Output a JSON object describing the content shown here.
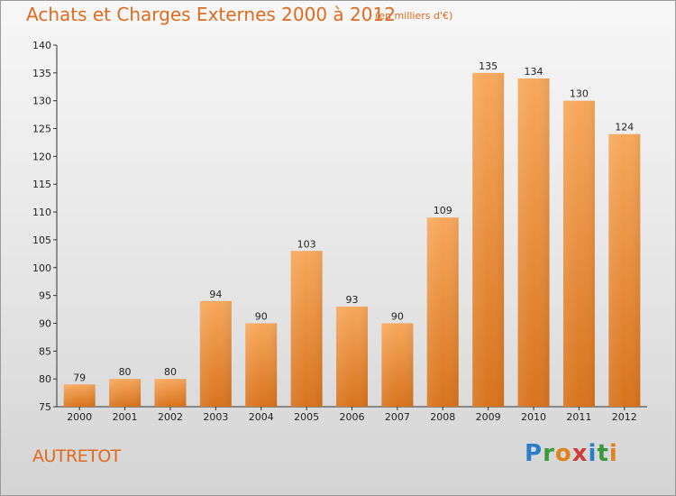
{
  "header": {
    "title": "Achats et Charges Externes 2000 à 2012",
    "subtitle": "(en milliers d'€)"
  },
  "footer": {
    "commune": "AUTRETOT",
    "brand": [
      "P",
      "r",
      "o",
      "x",
      "i",
      "t",
      "i"
    ]
  },
  "colors": {
    "accent": "#e06a1e",
    "bar_light": "#f6a458",
    "bar_dark": "#d9751f"
  },
  "chart_data": {
    "type": "bar",
    "title": "Achats et Charges Externes 2000 à 2012",
    "subtitle": "(en milliers d'€)",
    "categories": [
      "2000",
      "2001",
      "2002",
      "2003",
      "2004",
      "2005",
      "2006",
      "2007",
      "2008",
      "2009",
      "2010",
      "2011",
      "2012"
    ],
    "values": [
      79,
      80,
      80,
      94,
      90,
      103,
      93,
      90,
      109,
      135,
      134,
      130,
      124
    ],
    "ylim": [
      75,
      140
    ],
    "yticks": [
      75,
      80,
      85,
      90,
      95,
      100,
      105,
      110,
      115,
      120,
      125,
      130,
      135,
      140
    ],
    "grid": false,
    "legend": "none"
  }
}
